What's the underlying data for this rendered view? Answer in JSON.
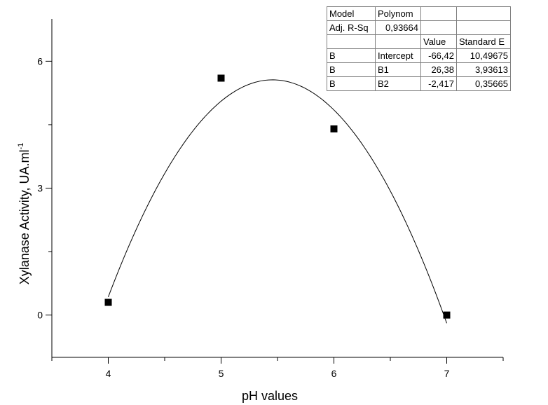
{
  "chart_data": {
    "type": "scatter",
    "xlabel": "pH values",
    "ylabel": "Xylanase Activity, UA.ml",
    "ylabel_superscript": "-1",
    "xlim": [
      3.5,
      7.5
    ],
    "ylim": [
      -1.0,
      7.0
    ],
    "x_ticks": [
      "4",
      "5",
      "6",
      "7"
    ],
    "y_ticks": [
      "0",
      "3",
      "6"
    ],
    "grid": false,
    "series": [
      {
        "values": [
          [
            4,
            0.3
          ],
          [
            5,
            5.6
          ],
          [
            6,
            4.4
          ],
          [
            7,
            0.0
          ]
        ]
      }
    ],
    "fit": {
      "type": "polynomial",
      "intercept": -66.42,
      "b1": 26.38,
      "b2": -2.417,
      "x_range": [
        4,
        7
      ]
    }
  },
  "stats_table": {
    "rows": [
      [
        "Model",
        "Polynom",
        "",
        ""
      ],
      [
        "Adj. R-Sq",
        "0,93664",
        "",
        ""
      ],
      [
        "",
        "",
        "Value",
        "Standard E"
      ],
      [
        "B",
        "Intercept",
        "-66,42",
        "10,49675"
      ],
      [
        "B",
        "B1",
        "26,38",
        "3,93613"
      ],
      [
        "B",
        "B2",
        "-2,417",
        "0,35665"
      ]
    ]
  }
}
